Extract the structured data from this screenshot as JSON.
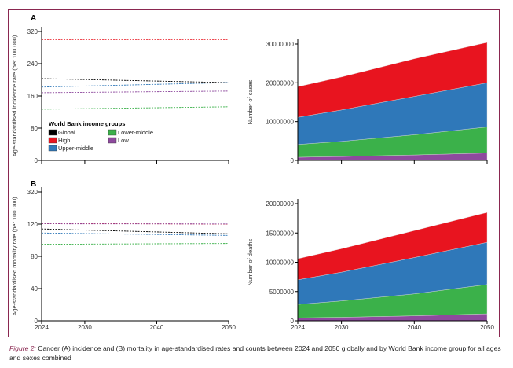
{
  "caption": {
    "label": "Figure 2:",
    "text": " Cancer (A) incidence and (B) mortality in age-standardised rates and counts between 2024 and 2050 globally and by World Bank income group for all ages and sexes combined"
  },
  "legend": {
    "title": "World Bank income groups",
    "items": [
      {
        "name": "Global",
        "color": "#000000"
      },
      {
        "name": "High",
        "color": "#e8141f"
      },
      {
        "name": "Upper-middle",
        "color": "#2f78b9"
      },
      {
        "name": "Lower-middle",
        "color": "#3bb14a"
      },
      {
        "name": "Low",
        "color": "#8e4a9e"
      }
    ]
  },
  "chart_data": [
    {
      "panel": "A",
      "type": "line",
      "style": "dashed",
      "x": [
        2024,
        2050
      ],
      "xticks": [
        2024,
        2030,
        2040,
        2050
      ],
      "ylabel": "Age-standardised incidence rate (per 100 000)",
      "ylim": [
        0,
        320
      ],
      "yticks": [
        0,
        80,
        160,
        240,
        320
      ],
      "series": [
        {
          "name": "High",
          "values": [
            300,
            300
          ]
        },
        {
          "name": "Global",
          "values": [
            203,
            193
          ]
        },
        {
          "name": "Upper-middle",
          "values": [
            182,
            193
          ]
        },
        {
          "name": "Low",
          "values": [
            168,
            172
          ]
        },
        {
          "name": "Lower-middle",
          "values": [
            127,
            133
          ]
        }
      ]
    },
    {
      "panel": "A",
      "type": "area",
      "stacked": true,
      "x": [
        2024,
        2030,
        2040,
        2050
      ],
      "xticks": [
        2024,
        2030,
        2040,
        2050
      ],
      "ylabel": "Number of cases",
      "ylim": [
        0,
        30000000
      ],
      "yticks": [
        0,
        10000000,
        20000000,
        30000000
      ],
      "ytick_labels": [
        "0",
        "10000000",
        "20000000",
        "30000000"
      ],
      "series": [
        {
          "name": "Low",
          "values": [
            800000,
            1000000,
            1400000,
            1900000
          ]
        },
        {
          "name": "Lower-middle",
          "values": [
            3300000,
            3900000,
            5200000,
            6700000
          ]
        },
        {
          "name": "Upper-middle",
          "values": [
            7000000,
            8100000,
            9900000,
            11400000
          ]
        },
        {
          "name": "High",
          "values": [
            7900000,
            8500000,
            9700000,
            10400000
          ]
        }
      ]
    },
    {
      "panel": "B",
      "type": "line",
      "style": "dashed",
      "x": [
        2024,
        2050
      ],
      "xticks": [
        2024,
        2030,
        2040,
        2050
      ],
      "ylabel": "Age-standardised mortality rate (per 100 000)",
      "yticks": [
        0,
        40,
        80,
        120,
        320
      ],
      "series": [
        {
          "name": "High",
          "values": [
            124,
            120
          ]
        },
        {
          "name": "Low",
          "values": [
            122,
            121
          ]
        },
        {
          "name": "Global",
          "values": [
            114,
            108
          ]
        },
        {
          "name": "Upper-middle",
          "values": [
            109,
            106
          ]
        },
        {
          "name": "Lower-middle",
          "values": [
            95,
            96
          ]
        }
      ]
    },
    {
      "panel": "B",
      "type": "area",
      "stacked": true,
      "x": [
        2024,
        2030,
        2040,
        2050
      ],
      "xticks": [
        2024,
        2030,
        2040,
        2050
      ],
      "ylabel": "Number of deaths",
      "ylim": [
        0,
        20000000
      ],
      "yticks": [
        0,
        5000000,
        10000000,
        15000000,
        20000000
      ],
      "ytick_labels": [
        "0",
        "5000000",
        "10000000",
        "15000000",
        "20000000"
      ],
      "series": [
        {
          "name": "Low",
          "values": [
            500000,
            600000,
            850000,
            1200000
          ]
        },
        {
          "name": "Lower-middle",
          "values": [
            2300000,
            2800000,
            3750000,
            5000000
          ]
        },
        {
          "name": "Upper-middle",
          "values": [
            4200000,
            4900000,
            6200000,
            7200000
          ]
        },
        {
          "name": "High",
          "values": [
            3600000,
            4000000,
            4600000,
            5100000
          ]
        }
      ]
    }
  ]
}
